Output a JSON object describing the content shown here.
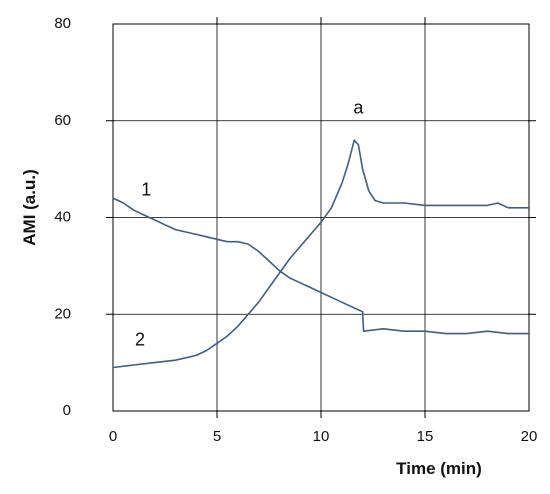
{
  "chart_data": {
    "type": "line",
    "title": "",
    "xlabel": "Time (min)",
    "ylabel": "AMI (a.u.)",
    "xlim": [
      0,
      20
    ],
    "ylim": [
      0,
      80
    ],
    "xticks": [
      "0",
      "5",
      "10",
      "15",
      "20"
    ],
    "yticks": [
      "0",
      "20",
      "40",
      "60",
      "80"
    ],
    "grid": true,
    "legend": "none",
    "line_color": "#3d5f86",
    "series": [
      {
        "label": "1",
        "x": [
          0,
          0.5,
          1,
          1.5,
          2,
          2.5,
          3,
          3.5,
          4,
          4.5,
          5,
          5.5,
          6,
          6.5,
          7,
          7.5,
          8,
          8.5,
          9,
          9.5,
          10,
          10.5,
          11,
          11.5,
          12,
          12.05,
          13,
          14,
          15,
          16,
          17,
          18,
          19,
          20
        ],
        "y": [
          44,
          43,
          41.5,
          40.5,
          39.5,
          38.5,
          37.5,
          37,
          36.5,
          36,
          35.5,
          35,
          35,
          34.5,
          33,
          31,
          29,
          27.5,
          26.5,
          25.5,
          24.5,
          23.5,
          22.5,
          21.5,
          20.5,
          16.5,
          17,
          16.5,
          16.5,
          16,
          16,
          16.5,
          16,
          16
        ]
      },
      {
        "label": "2",
        "x": [
          0,
          1,
          2,
          3,
          4,
          4.5,
          5,
          5.5,
          6,
          6.5,
          7,
          7.5,
          8,
          8.5,
          9,
          9.5,
          10,
          10.5,
          11,
          11.3,
          11.6,
          11.8,
          12,
          12.3,
          12.6,
          13,
          14,
          15,
          16,
          17,
          18,
          18.5,
          19,
          20
        ],
        "y": [
          9,
          9.5,
          10,
          10.5,
          11.5,
          12.5,
          14,
          15.5,
          17.5,
          20,
          22.5,
          25.5,
          28.5,
          31.5,
          34,
          36.5,
          39,
          42,
          47,
          51,
          56,
          55,
          50,
          45.5,
          43.5,
          43,
          43,
          42.5,
          42.5,
          42.5,
          42.5,
          43,
          42,
          42
        ]
      }
    ],
    "annotations": [
      {
        "text": "a",
        "x": 11.8,
        "y": 61.5
      },
      {
        "text": "1",
        "x": 1.6,
        "y": 44.5
      },
      {
        "text": "2",
        "x": 1.3,
        "y": 13.5
      }
    ]
  }
}
